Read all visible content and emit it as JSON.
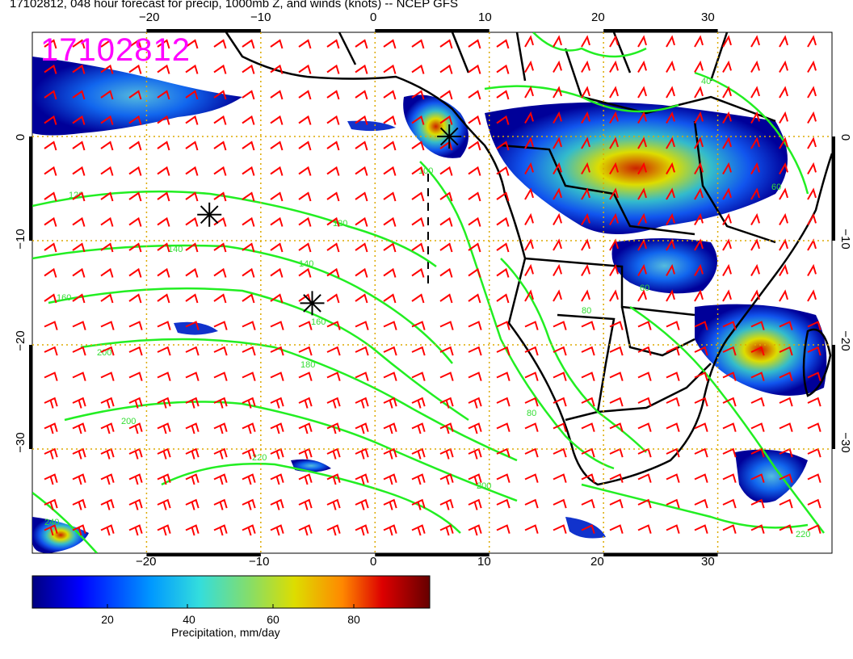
{
  "header": {
    "title": "17102812, 048 hour forecast for precip, 1000mb Z, and winds (knots) -- NCEP GFS",
    "stamp": "17102812"
  },
  "axes": {
    "lon_ticks": [
      "−20",
      "−10",
      "0",
      "10",
      "20",
      "30"
    ],
    "top_lon_ticks": [
      "−20",
      "−10",
      "0",
      "10",
      "20",
      "30"
    ],
    "lat_ticks_left": [
      "0",
      "−10",
      "−20",
      "−30"
    ],
    "lat_ticks_right": [
      "0",
      "−10",
      "−20",
      "−30"
    ],
    "lon_range": [
      -30,
      40
    ],
    "lat_range": [
      -40,
      10
    ]
  },
  "contour_labels": [
    "120",
    "120",
    "140",
    "140",
    "160",
    "160",
    "180",
    "200",
    "200",
    "220",
    "100",
    "80",
    "80",
    "60",
    "60",
    "40",
    "200",
    "220",
    "240"
  ],
  "colorbar": {
    "label": "Precipitation, mm/day",
    "ticks": [
      "20",
      "40",
      "60",
      "80"
    ],
    "range": [
      0,
      100
    ]
  },
  "colors": {
    "contour": "#22ee22",
    "wind_barb": "#ff0000",
    "grid": "#ddaa00",
    "coast": "#000000",
    "stamp": "#ff00ff"
  },
  "markers": [
    {
      "name": "storm-marker-1",
      "lon": -14.5,
      "lat": -7.5
    },
    {
      "name": "storm-marker-2",
      "lon": -5.5,
      "lat": -16
    },
    {
      "name": "storm-marker-3",
      "lon": 6.5,
      "lat": 0
    }
  ]
}
